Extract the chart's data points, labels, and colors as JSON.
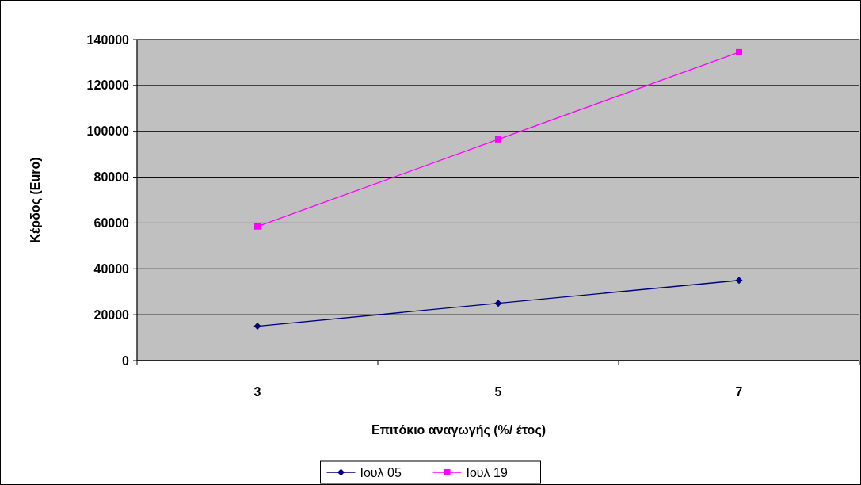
{
  "chart_data": {
    "type": "line",
    "xlabel": "Επιτόκιο αναγωγής (%/ έτος)",
    "ylabel": "Κέρδος (Euro)",
    "categories": [
      "3",
      "5",
      "7"
    ],
    "series": [
      {
        "name": "Ιουλ 05",
        "color": "#000080",
        "marker": "diamond",
        "values": [
          15000,
          25000,
          35000
        ]
      },
      {
        "name": "Ιουλ 19",
        "color": "#ff00ff",
        "marker": "square",
        "values": [
          58500,
          96500,
          134500
        ]
      }
    ],
    "ylim": [
      0,
      140000
    ],
    "yticks": [
      0,
      20000,
      40000,
      60000,
      80000,
      100000,
      120000,
      140000
    ],
    "grid": "y",
    "legend": "bottom"
  }
}
